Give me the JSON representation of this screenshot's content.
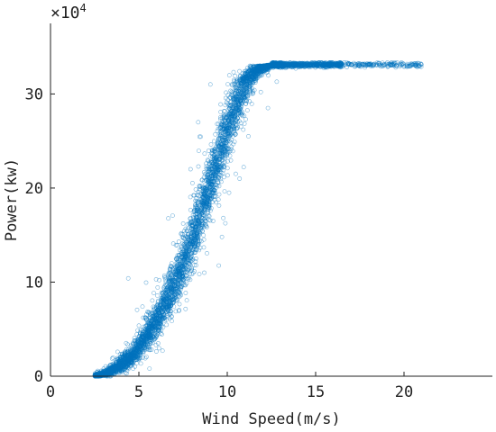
{
  "chart_data": {
    "type": "scatter",
    "title": "",
    "xlabel": "Wind Speed(m/s)",
    "ylabel": "Power(kw)",
    "y_multiplier": {
      "base": "×10",
      "exponent": "4"
    },
    "xlim": [
      0,
      25
    ],
    "ylim": [
      0,
      37.5
    ],
    "y_unit_scale": 10000,
    "x_ticks": [
      {
        "value": 0,
        "label": "0"
      },
      {
        "value": 5,
        "label": "5"
      },
      {
        "value": 10,
        "label": "10"
      },
      {
        "value": 15,
        "label": "15"
      },
      {
        "value": 20,
        "label": "20"
      }
    ],
    "y_ticks": [
      {
        "value": 0,
        "label": "0"
      },
      {
        "value": 10,
        "label": "10"
      },
      {
        "value": 20,
        "label": "20"
      },
      {
        "value": 30,
        "label": "30"
      }
    ],
    "grid": false,
    "legend": "none",
    "marker": "open-circle",
    "color": "#0072BD",
    "series": [
      {
        "power_curve": [
          [
            2.3,
            0.0
          ],
          [
            3.0,
            0.2
          ],
          [
            3.5,
            0.6
          ],
          [
            4.0,
            1.2
          ],
          [
            4.5,
            2.0
          ],
          [
            5.0,
            3.0
          ],
          [
            5.5,
            4.3
          ],
          [
            6.0,
            5.9
          ],
          [
            6.5,
            7.6
          ],
          [
            7.0,
            9.7
          ],
          [
            7.5,
            12.0
          ],
          [
            8.0,
            14.6
          ],
          [
            8.5,
            17.4
          ],
          [
            9.0,
            20.3
          ],
          [
            9.5,
            23.3
          ],
          [
            10.0,
            26.2
          ],
          [
            10.5,
            28.8
          ],
          [
            11.0,
            31.0
          ],
          [
            11.5,
            32.3
          ],
          [
            12.0,
            32.9
          ],
          [
            13.0,
            33.1
          ],
          [
            21.0,
            33.1
          ]
        ],
        "cut_in_speed": 2.3,
        "rated_speed": 12.0,
        "max_speed": 21.0,
        "rated_power": 33.1,
        "outliers": [
          [
            4.4,
            10.4
          ],
          [
            9.7,
            14.8
          ],
          [
            10.7,
            21.0
          ],
          [
            11.2,
            25.5
          ],
          [
            12.8,
            31.3
          ],
          [
            11.9,
            30.2
          ],
          [
            8.7,
            11.0
          ],
          [
            10.1,
            19.5
          ],
          [
            12.3,
            28.5
          ],
          [
            5.6,
            0.8
          ],
          [
            4.2,
            2.3
          ],
          [
            9.2,
            16.5
          ]
        ]
      }
    ]
  }
}
